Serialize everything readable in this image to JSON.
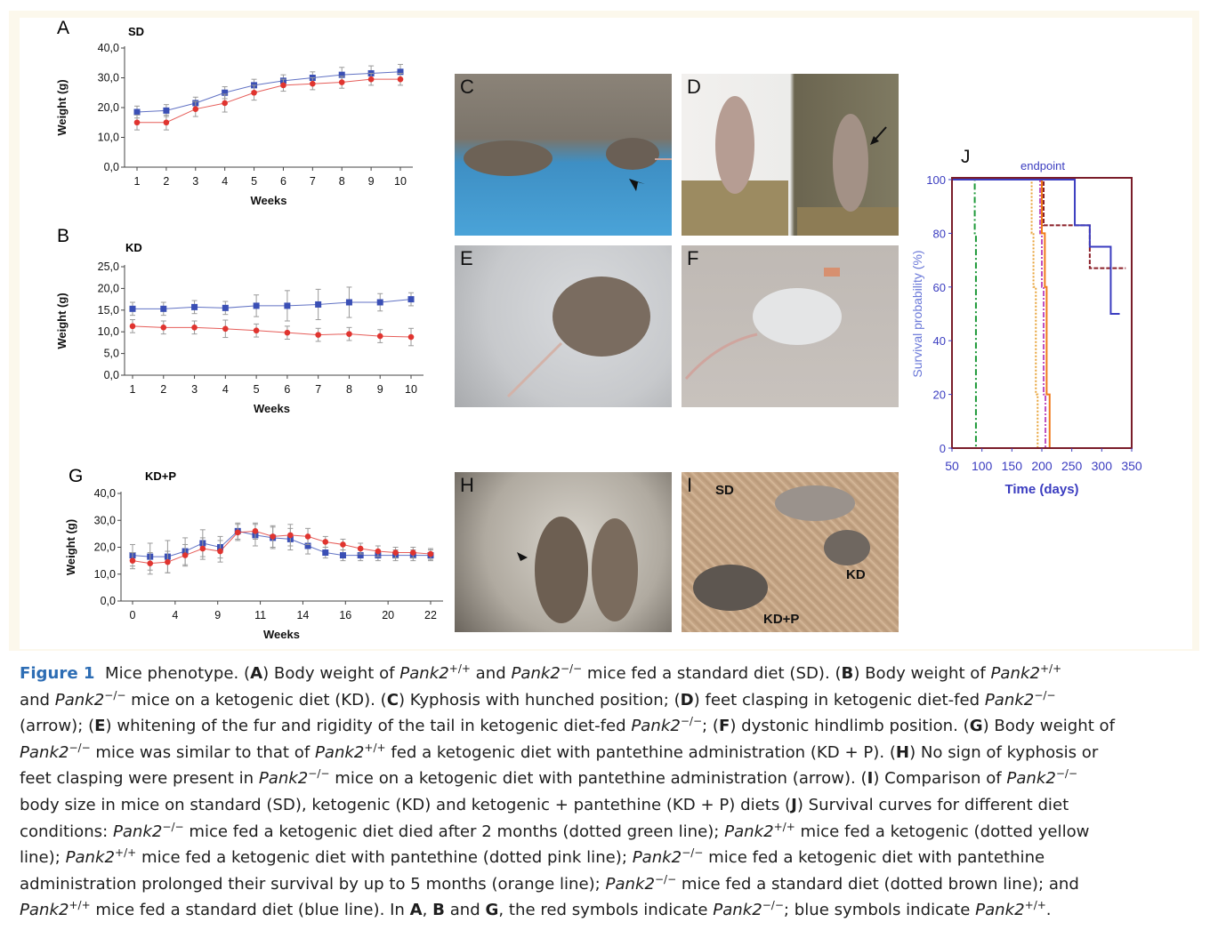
{
  "charts": {
    "A": {
      "letter": "A",
      "diet": "SD",
      "ylabel": "Weight (g)",
      "xlabel": "Weeks"
    },
    "B": {
      "letter": "B",
      "diet": "KD",
      "ylabel": "Weight (g)",
      "xlabel": "Weeks"
    },
    "G": {
      "letter": "G",
      "diet": "KD+P",
      "ylabel": "Weight (g)",
      "xlabel": "Weeks"
    },
    "J": {
      "letter": "J",
      "note": "endpoint",
      "ylabel": "Survival probability (%)",
      "xlabel": "Time (days)"
    }
  },
  "chart_data": [
    {
      "id": "A",
      "type": "line",
      "title": "SD",
      "xlabel": "Weeks",
      "ylabel": "Weight (g)",
      "ylim": [
        0,
        40
      ],
      "yticks": [
        "0,0",
        "10,0",
        "20,0",
        "30,0",
        "40,0"
      ],
      "x": [
        1,
        2,
        3,
        4,
        5,
        6,
        7,
        8,
        9,
        10
      ],
      "series": [
        {
          "color": "#3a4fb5",
          "values": [
            18.5,
            19,
            21.5,
            25,
            27.5,
            29,
            30,
            31,
            31.5,
            32
          ],
          "err": [
            2,
            2,
            2,
            2,
            2,
            2,
            2,
            2.5,
            2.5,
            2.5
          ]
        },
        {
          "color": "#e0342f",
          "values": [
            15,
            15,
            19.5,
            21.5,
            25,
            27.5,
            28,
            28.5,
            29.5,
            29.5
          ],
          "err": [
            2.5,
            2.5,
            2.5,
            3,
            2.5,
            2,
            2,
            2,
            2,
            2
          ]
        }
      ]
    },
    {
      "id": "B",
      "type": "line",
      "title": "KD",
      "xlabel": "Weeks",
      "ylabel": "Weight (g)",
      "ylim": [
        0,
        25
      ],
      "yticks": [
        "0,0",
        "5,0",
        "10,0",
        "15,0",
        "20,0",
        "25,0"
      ],
      "x": [
        1,
        2,
        3,
        4,
        5,
        6,
        7,
        8,
        9,
        10
      ],
      "series": [
        {
          "color": "#3a4fb5",
          "values": [
            15.3,
            15.3,
            15.7,
            15.5,
            16,
            16,
            16.3,
            16.8,
            16.8,
            17.5
          ],
          "err": [
            1.5,
            1.5,
            1.5,
            1.5,
            2.5,
            3.5,
            3.5,
            3.5,
            2,
            1.5
          ]
        },
        {
          "color": "#e0342f",
          "values": [
            11.3,
            11,
            11,
            10.7,
            10.3,
            9.8,
            9.3,
            9.5,
            9,
            8.8
          ],
          "err": [
            1.5,
            1.5,
            1.5,
            2,
            1.5,
            1.5,
            1.5,
            1.5,
            1.5,
            2
          ]
        }
      ]
    },
    {
      "id": "G",
      "type": "line",
      "title": "KD+P",
      "xlabel": "Weeks",
      "ylabel": "Weight (g)",
      "ylim": [
        0,
        40
      ],
      "yticks": [
        "0,0",
        "10,0",
        "20,0",
        "30,0",
        "40,0"
      ],
      "xticks": [
        "0",
        "4",
        "9",
        "11",
        "14",
        "16",
        "20",
        "22"
      ],
      "x": [
        0,
        2,
        4,
        6,
        8,
        10,
        12,
        14,
        16,
        18,
        20,
        22,
        24,
        26,
        28,
        30,
        32,
        34
      ],
      "series": [
        {
          "color": "#3a4fb5",
          "values": [
            17,
            16.5,
            16.5,
            18.5,
            21.5,
            20,
            26,
            24.5,
            23.5,
            23,
            20.5,
            18,
            17,
            17,
            17,
            17,
            17,
            17
          ],
          "err": [
            4,
            5,
            6,
            5,
            5,
            4,
            3,
            4,
            4,
            4,
            3,
            2,
            2,
            2,
            2,
            2,
            2,
            2
          ]
        },
        {
          "color": "#e0342f",
          "values": [
            15,
            14,
            14.5,
            17,
            19.5,
            18.5,
            25.5,
            26,
            24,
            24.5,
            24,
            22,
            21,
            19.5,
            18.5,
            18,
            18,
            17.5
          ],
          "err": [
            3,
            4,
            4,
            4,
            4,
            4,
            3,
            3,
            4,
            4,
            3,
            2,
            2,
            2,
            2,
            2,
            2,
            2
          ]
        }
      ]
    },
    {
      "id": "J",
      "type": "line",
      "title": "endpoint",
      "xlabel": "Time (days)",
      "ylabel": "Survival probability (%)",
      "xlim": [
        50,
        350
      ],
      "ylim": [
        0,
        100
      ],
      "xticks": [
        "50",
        "100",
        "150",
        "200",
        "250",
        "300",
        "350"
      ],
      "yticks": [
        "0",
        "20",
        "40",
        "60",
        "80",
        "100"
      ],
      "series": [
        {
          "color": "#1f9a3a",
          "dash": "7,3,2,3",
          "points": [
            [
              50,
              100
            ],
            [
              88,
              100
            ],
            [
              88,
              80
            ],
            [
              90,
              80
            ],
            [
              90,
              0
            ]
          ]
        },
        {
          "color": "#e8a43a",
          "dash": "2,2",
          "points": [
            [
              50,
              100
            ],
            [
              183,
              100
            ],
            [
              183,
              80
            ],
            [
              186,
              80
            ],
            [
              186,
              60
            ],
            [
              190,
              60
            ],
            [
              190,
              20
            ],
            [
              193,
              20
            ],
            [
              193,
              0
            ]
          ]
        },
        {
          "color": "#c050c0",
          "dash": "6,2,2,2",
          "points": [
            [
              50,
              100
            ],
            [
              197,
              100
            ],
            [
              197,
              80
            ],
            [
              200,
              80
            ],
            [
              200,
              60
            ],
            [
              203,
              60
            ],
            [
              203,
              20
            ],
            [
              206,
              20
            ],
            [
              206,
              0
            ]
          ]
        },
        {
          "color": "#f07a1a",
          "dash": "",
          "points": [
            [
              50,
              100
            ],
            [
              200,
              100
            ],
            [
              200,
              80
            ],
            [
              205,
              80
            ],
            [
              205,
              60
            ],
            [
              208,
              60
            ],
            [
              208,
              20
            ],
            [
              213,
              20
            ],
            [
              213,
              0
            ]
          ]
        },
        {
          "color": "#8a1f28",
          "dash": "5,2",
          "points": [
            [
              50,
              100
            ],
            [
              203,
              100
            ],
            [
              203,
              83
            ],
            [
              280,
              83
            ],
            [
              280,
              67
            ],
            [
              340,
              67
            ]
          ]
        },
        {
          "color": "#3b3dc0",
          "dash": "",
          "points": [
            [
              50,
              100
            ],
            [
              255,
              100
            ],
            [
              255,
              83
            ],
            [
              280,
              83
            ],
            [
              280,
              75
            ],
            [
              315,
              75
            ],
            [
              315,
              50
            ],
            [
              330,
              50
            ]
          ]
        }
      ]
    }
  ],
  "photos": {
    "C": {
      "letter": "C"
    },
    "D": {
      "letter": "D"
    },
    "E": {
      "letter": "E"
    },
    "F": {
      "letter": "F"
    },
    "H": {
      "letter": "H"
    },
    "I": {
      "letter": "I",
      "labels": [
        "SD",
        "KD",
        "KD+P"
      ]
    }
  },
  "caption": {
    "figure_label": "Figure 1",
    "lines": [
      "Mice phenotype. (A) Body weight of Pank2+/+ and Pank2−/− mice fed a standard diet (SD). (B) Body weight of Pank2+/+",
      "and Pank2−/− mice on a ketogenic diet (KD). (C) Kyphosis with hunched position; (D) feet clasping in ketogenic diet-fed Pank2−/−",
      "(arrow); (E) whitening of the fur and rigidity of the tail in ketogenic diet-fed Pank2−/−; (F) dystonic hindlimb position. (G) Body weight of",
      "Pank2−/− mice was similar to that of Pank2+/+ fed a ketogenic diet with pantethine administration (KD + P). (H) No sign of kyphosis or",
      "feet clasping were present in Pank2−/− mice on a ketogenic diet with pantethine administration (arrow). (I) Comparison of Pank2−/−",
      "body size in mice on standard (SD), ketogenic (KD) and ketogenic + pantethine (KD + P) diets (J) Survival curves for different diet",
      "conditions: Pank2−/− mice fed a ketogenic diet died after 2 months (dotted green line); Pank2+/+ mice fed a ketogenic (dotted yellow",
      "line); Pank2+/+ mice fed a ketogenic diet with pantethine (dotted pink line); Pank2−/− mice fed a ketogenic diet with pantethine",
      "administration prolonged their survival by up to 5 months (orange line); Pank2−/− mice fed a standard diet (dotted brown line); and",
      "Pank2+/+ mice fed a standard diet (blue line). In A, B and G, the red symbols indicate Pank2−/−; blue symbols indicate Pank2+/+."
    ]
  }
}
